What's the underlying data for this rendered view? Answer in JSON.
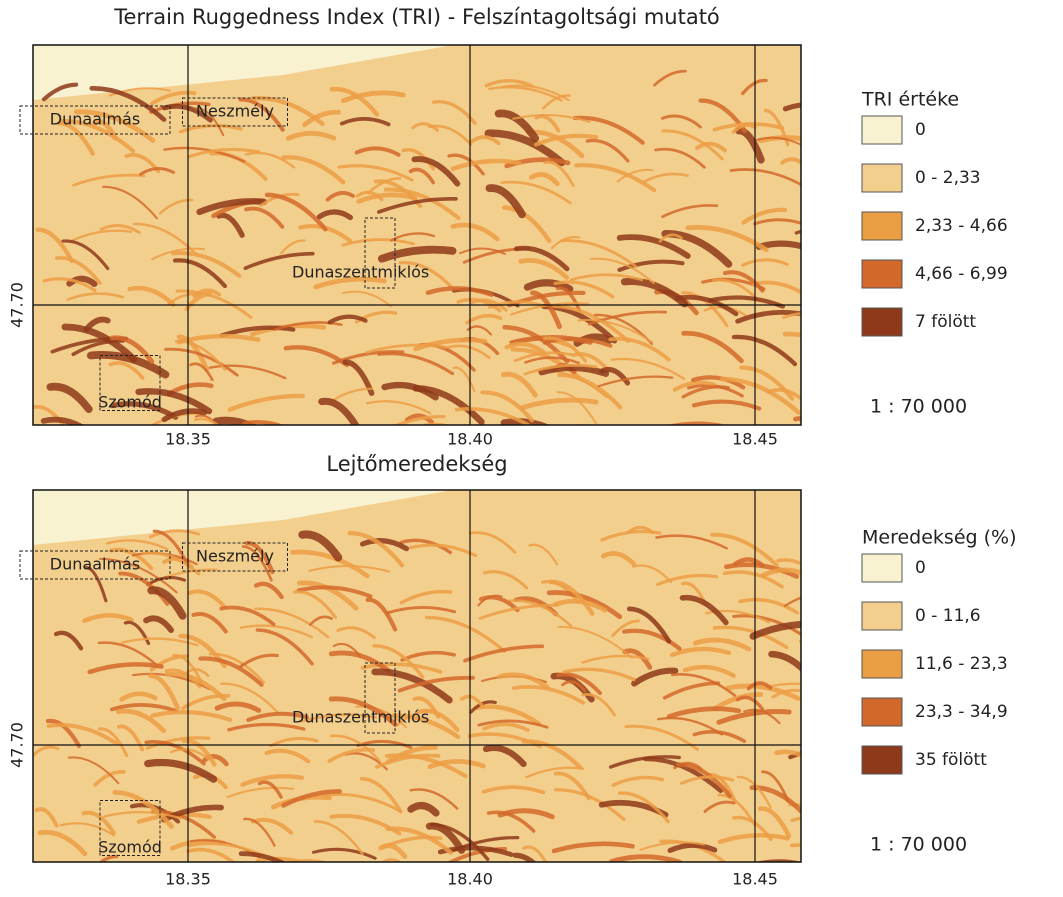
{
  "panels": [
    {
      "title": "Terrain Ruggedness Index (TRI) - Felszíntagoltsági mutató",
      "places": [
        "Dunaalmás",
        "Neszmély",
        "Dunaszentmiklós",
        "Szomód"
      ],
      "x_ticks": [
        "18.35",
        "18.40",
        "18.45"
      ],
      "y_ticks": [
        "47.70"
      ],
      "legend": {
        "title": "TRI értéke",
        "items": [
          "0",
          "0 - 2,33",
          "2,33 - 4,66",
          "4,66 - 6,99",
          "7 fölött"
        ]
      },
      "scale": "1 : 70 000"
    },
    {
      "title": "Lejtőmeredekség",
      "places": [
        "Dunaalmás",
        "Neszmély",
        "Dunaszentmiklós",
        "Szomód"
      ],
      "x_ticks": [
        "18.35",
        "18.40",
        "18.45"
      ],
      "y_ticks": [
        "47.70"
      ],
      "legend": {
        "title": "Meredekség (%)",
        "items": [
          "0",
          "0 - 11,6",
          "11,6 - 23,3",
          "23,3 - 34,9",
          "35 fölött"
        ]
      },
      "scale": "1 : 70 000"
    }
  ]
}
